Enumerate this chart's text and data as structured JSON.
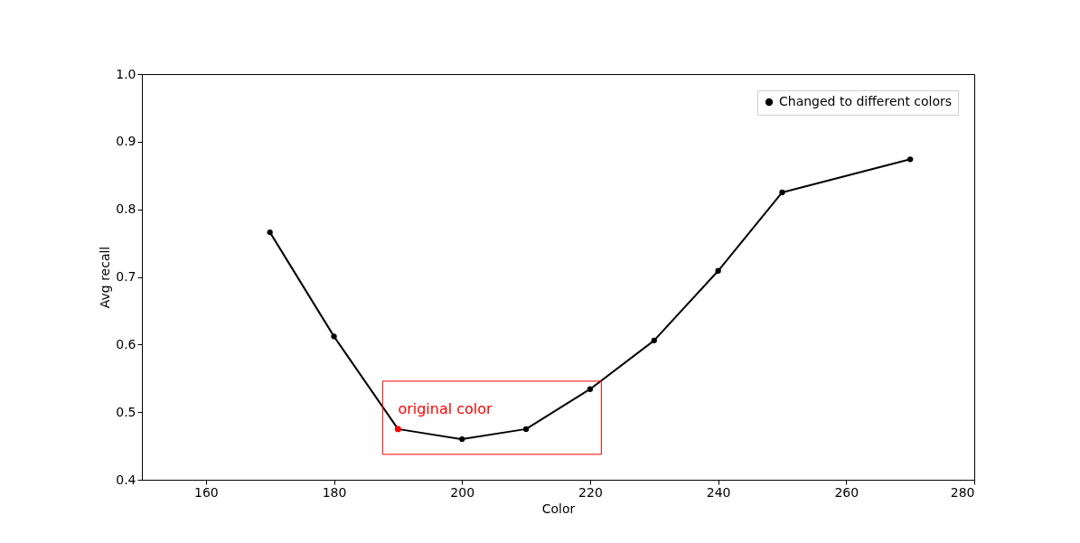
{
  "chart_data": {
    "type": "line",
    "xlabel": "Color",
    "ylabel": "Avg recall",
    "x": [
      170,
      180,
      190,
      200,
      210,
      220,
      230,
      240,
      250,
      270
    ],
    "series": [
      {
        "name": "Changed to different colors",
        "color": "#000000",
        "values": [
          0.766,
          0.612,
          0.475,
          0.46,
          0.475,
          0.534,
          0.606,
          0.709,
          0.825,
          0.874
        ]
      }
    ],
    "annotations": [
      {
        "text": "original color",
        "x": 190,
        "y": 0.475
      }
    ],
    "xlim": [
      150,
      280
    ],
    "xticks": [
      160,
      180,
      200,
      220,
      240,
      260,
      280
    ],
    "ylim": [
      0.4,
      1.0
    ],
    "yticks": [
      0.4,
      0.5,
      0.6,
      0.7,
      0.8,
      0.9,
      {
        "value": 1.0,
        "label": "1.0"
      }
    ],
    "grid": false,
    "legend": "top right",
    "marker": "circle",
    "line_style": "solid"
  }
}
